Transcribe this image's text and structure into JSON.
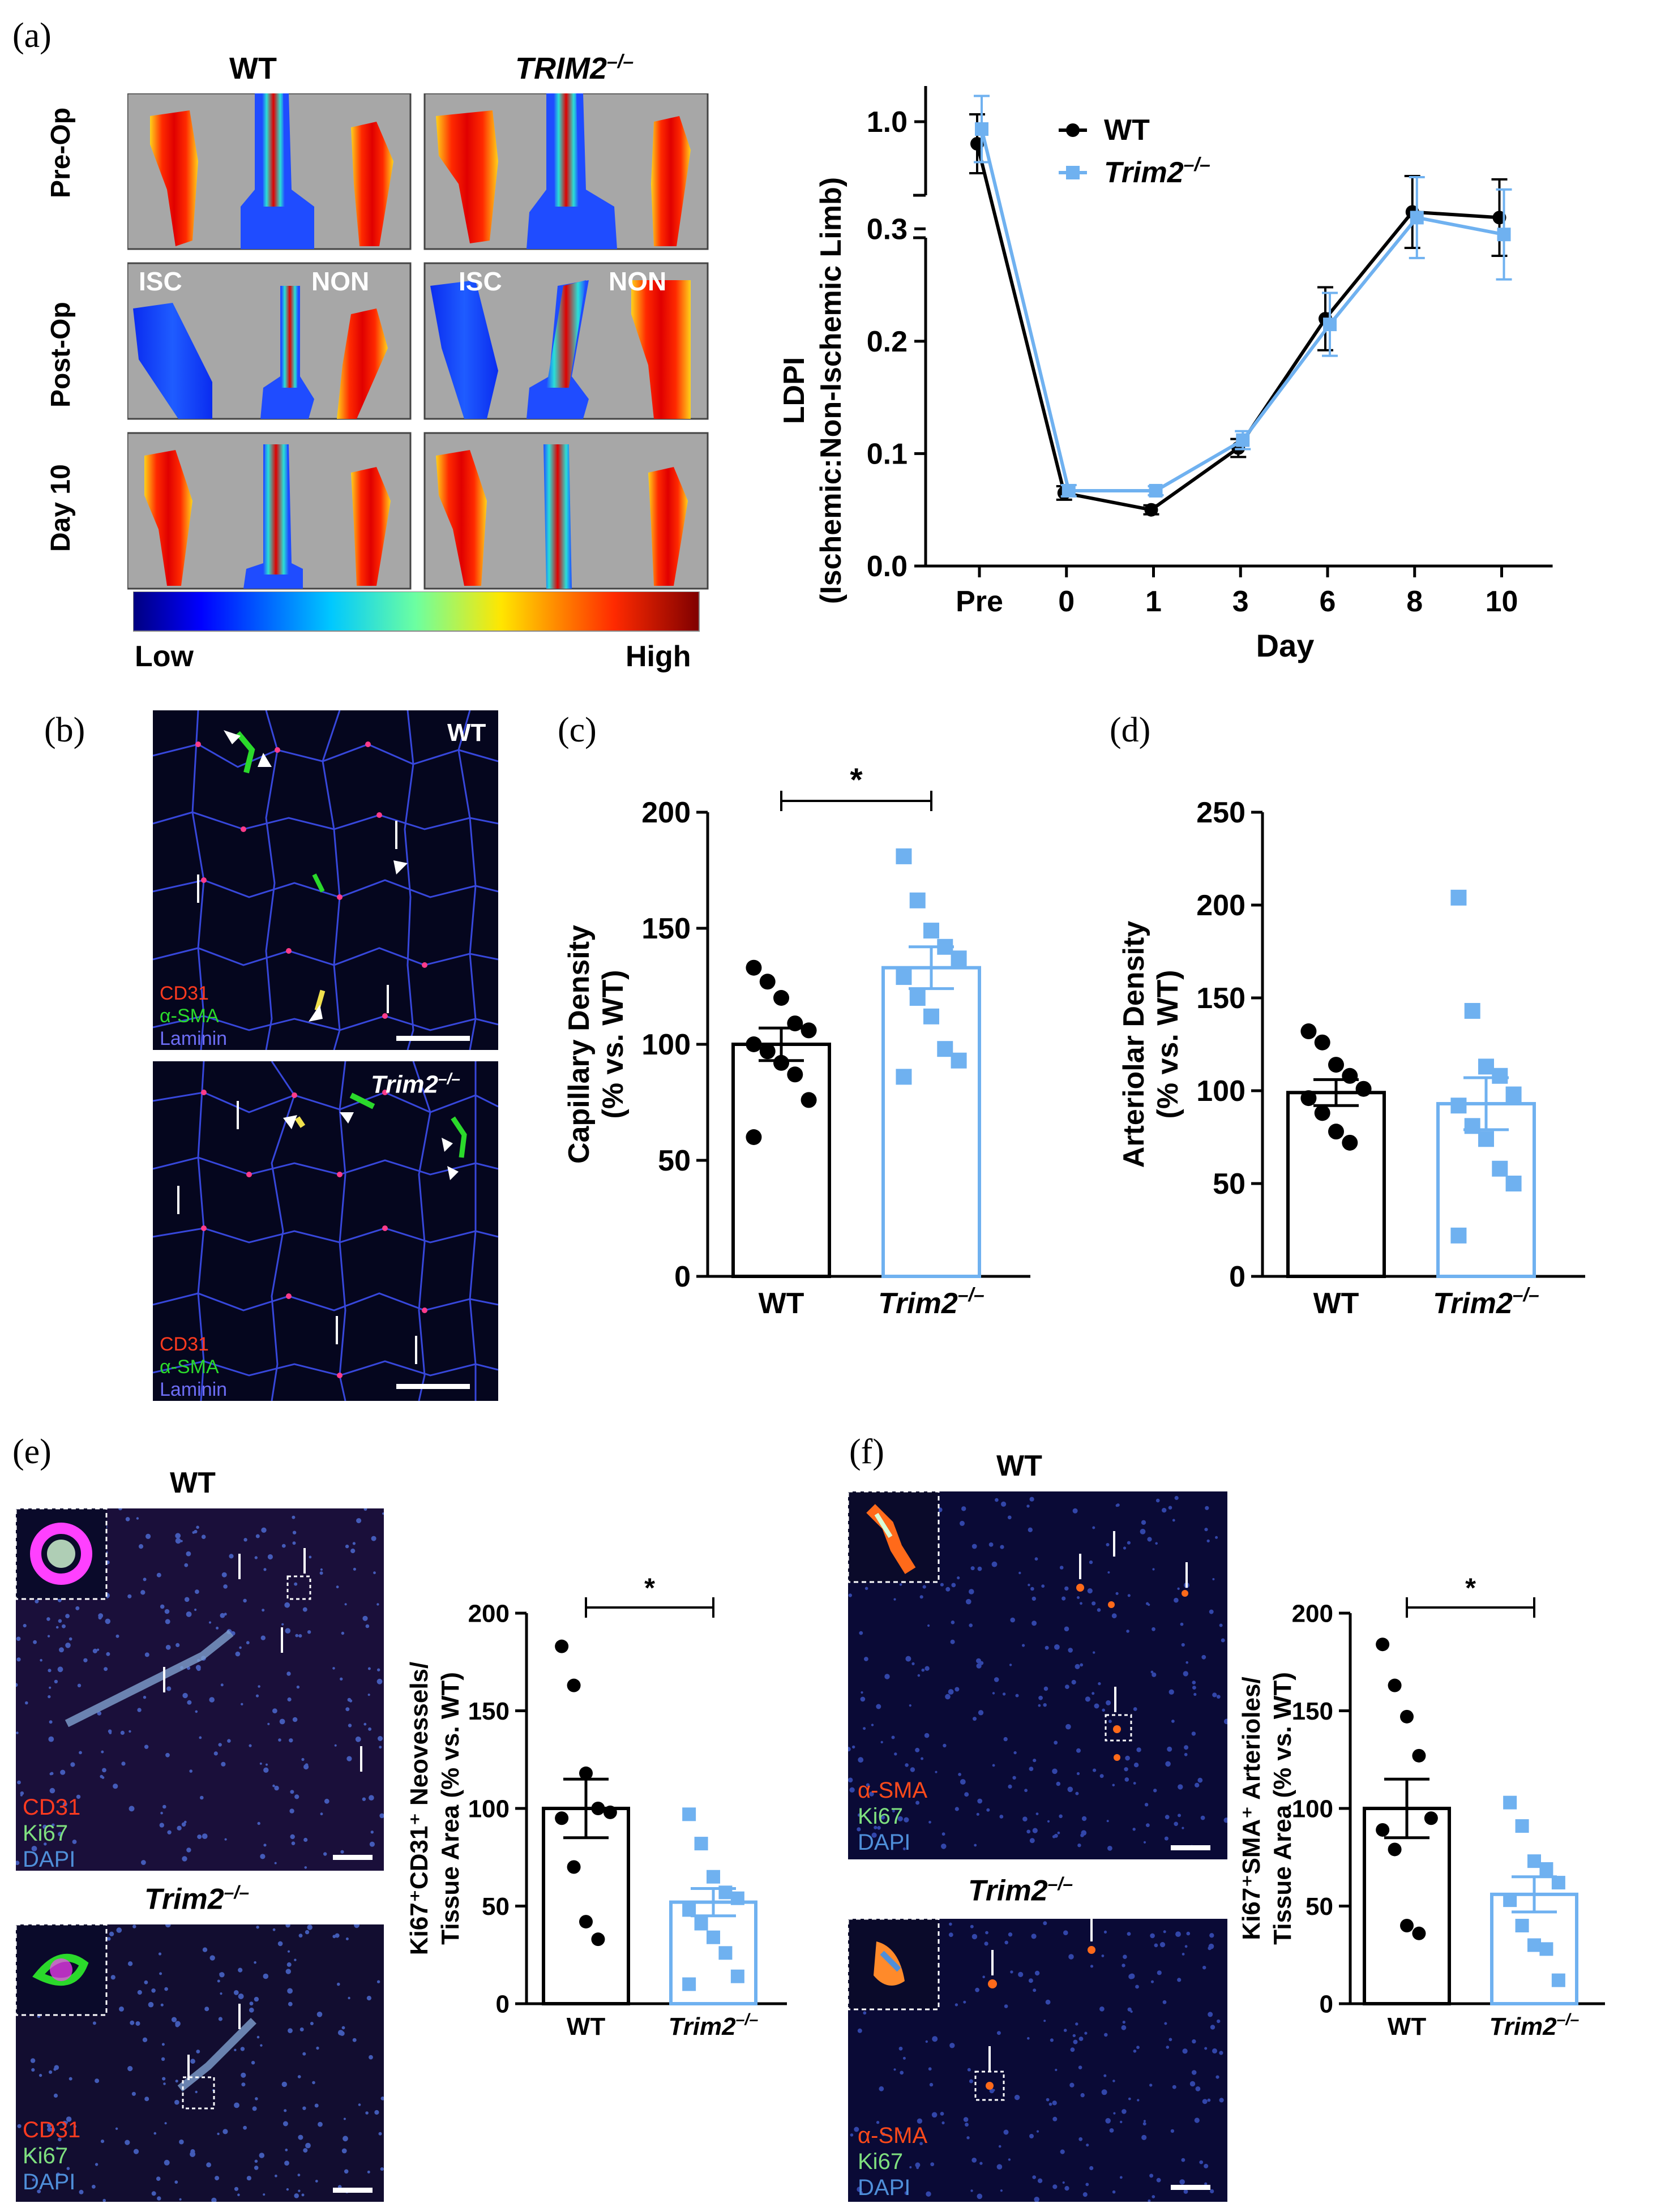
{
  "panel_letters": {
    "a": "(a)",
    "b": "(b)",
    "c": "(c)",
    "d": "(d)",
    "e": "(e)",
    "f": "(f)"
  },
  "panel_a": {
    "col_wt": "WT",
    "col_ko": "TRIM2",
    "ko_sup": "–/–",
    "rows": [
      "Pre-Op",
      "Post-Op",
      "Day 10"
    ],
    "isc": "ISC",
    "non": "NON",
    "scale_low": "Low",
    "scale_high": "High"
  },
  "panel_b": {
    "wt_label": "WT",
    "ko_label": "Trim2",
    "ko_sup": "–/–",
    "legend": [
      "CD31",
      "α-SMA",
      "Laminin"
    ]
  },
  "panel_e": {
    "wt_label": "WT",
    "ko_label": "Trim2",
    "ko_sup": "–/–",
    "legend": [
      "CD31",
      "Ki67",
      "DAPI"
    ]
  },
  "panel_f": {
    "wt_label": "WT",
    "ko_label": "Trim2",
    "ko_sup": "–/–",
    "legend": [
      "α-SMA",
      "Ki67",
      "DAPI"
    ]
  },
  "colors": {
    "wt": "#000000",
    "ko": "#6fb1f0",
    "cd31": "#ff3b1f",
    "sma": "#2bd92b",
    "laminin": "#6d6df5",
    "dapi": "#4f8fd9",
    "sma_red": "#ff4a1a"
  },
  "chart_data": [
    {
      "id": "a",
      "type": "line",
      "ylabel": "LDPI",
      "ylabel2": "(Ischemic:Non-Ischemic Limb)",
      "xlabel": "Day",
      "categories": [
        "Pre",
        "0",
        "1",
        "3",
        "6",
        "8",
        "10"
      ],
      "yticks_low": [
        "0.0",
        "0.1",
        "0.2",
        "0.3"
      ],
      "ytick_high": "1.0",
      "ylim_low": [
        0,
        0.35
      ],
      "ylim_high": [
        0.95,
        1.05
      ],
      "legend_wt": "WT",
      "legend_ko": "Trim2",
      "legend_ko_sup": "–/–",
      "series": [
        {
          "name": "WT",
          "values": [
            0.97,
            0.065,
            0.05,
            0.105,
            0.22,
            0.315,
            0.31
          ],
          "err": [
            0.04,
            0.006,
            0.004,
            0.008,
            0.028,
            0.032,
            0.034
          ]
        },
        {
          "name": "Trim2–/–",
          "values": [
            0.99,
            0.067,
            0.067,
            0.112,
            0.215,
            0.31,
            0.295
          ],
          "err": [
            0.045,
            0.005,
            0.004,
            0.008,
            0.028,
            0.036,
            0.04
          ]
        }
      ]
    },
    {
      "id": "c",
      "type": "bar",
      "ylabel": "Capillary Density",
      "ylabel2": "(% vs. WT)",
      "categories": [
        "WT",
        "Trim2"
      ],
      "cat_sup": "–/–",
      "yticks": [
        "0",
        "50",
        "100",
        "150",
        "200"
      ],
      "ylim": [
        0,
        200
      ],
      "values": [
        100,
        133
      ],
      "sem": [
        7,
        9
      ],
      "significance": "*",
      "points": [
        [
          133,
          127,
          120,
          109,
          106,
          100,
          97,
          92,
          87,
          76,
          60
        ],
        [
          181,
          162,
          149,
          142,
          137,
          129,
          120,
          112,
          98,
          93,
          86
        ]
      ]
    },
    {
      "id": "d",
      "type": "bar",
      "ylabel": "Arteriolar Density",
      "ylabel2": "(% vs. WT)",
      "categories": [
        "WT",
        "Trim2"
      ],
      "cat_sup": "–/–",
      "yticks": [
        "0",
        "50",
        "100",
        "150",
        "200",
        "250"
      ],
      "ylim": [
        0,
        250
      ],
      "values": [
        99,
        93
      ],
      "sem": [
        7,
        14
      ],
      "points": [
        [
          132,
          126,
          114,
          108,
          101,
          96,
          88,
          78,
          72
        ],
        [
          204,
          143,
          113,
          108,
          98,
          92,
          81,
          74,
          58,
          50,
          22
        ]
      ]
    },
    {
      "id": "e",
      "type": "bar",
      "ylabel": "Ki67⁺CD31⁺ Neovessels/",
      "ylabel2": "Tissue Area (% vs. WT)",
      "categories": [
        "WT",
        "Trim2"
      ],
      "cat_sup": "–/–",
      "yticks": [
        "0",
        "50",
        "100",
        "150",
        "200"
      ],
      "ylim": [
        0,
        200
      ],
      "values": [
        100,
        52
      ],
      "sem": [
        15,
        7
      ],
      "significance": "*",
      "points": [
        [
          183,
          163,
          118,
          100,
          98,
          95,
          70,
          42,
          33
        ],
        [
          97,
          82,
          65,
          57,
          54,
          48,
          41,
          34,
          26,
          14,
          10
        ]
      ]
    },
    {
      "id": "f",
      "type": "bar",
      "ylabel": "Ki67⁺SMA⁺ Arterioles/",
      "ylabel2": "Tissue Area (% vs. WT)",
      "categories": [
        "WT",
        "Trim2"
      ],
      "cat_sup": "–/–",
      "yticks": [
        "0",
        "50",
        "100",
        "150",
        "200"
      ],
      "ylim": [
        0,
        200
      ],
      "values": [
        100,
        56
      ],
      "sem": [
        15,
        9
      ],
      "significance": "*",
      "points": [
        [
          184,
          163,
          147,
          127,
          95,
          89,
          79,
          40,
          36
        ],
        [
          103,
          91,
          73,
          69,
          62,
          53,
          40,
          30,
          28,
          12
        ]
      ]
    }
  ]
}
